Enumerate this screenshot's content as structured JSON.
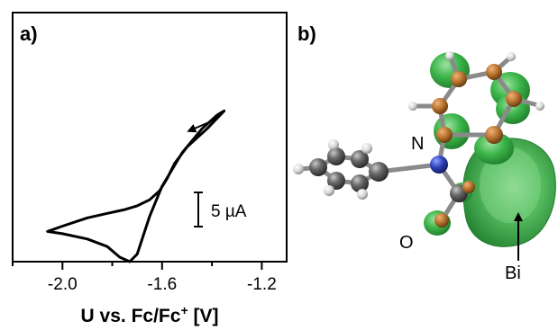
{
  "panel_a": {
    "label": "a)",
    "scale_bar_label": "5 µA",
    "scale_bar_value_uA": 5,
    "arrow_direction": "scan-direction-left"
  },
  "panel_b": {
    "label": "b)",
    "atoms": {
      "nitrogen": "N",
      "oxygen": "O",
      "bismuth": "Bi"
    },
    "orbital_color": "#3cb54a",
    "carbon_color": "#5c5c5c",
    "nitrogen_color": "#2a3fb8",
    "bridge_atom_color": "#b8732e"
  },
  "chart_data": {
    "type": "line",
    "title": "",
    "xlabel": "U vs. Fc/Fc",
    "xlabel_superscript": "+",
    "xlabel_unit": " [V]",
    "ylabel": "",
    "xlim": [
      -2.2,
      -1.1
    ],
    "x_reversed": false,
    "x_ticks": [
      -2.2,
      -2.0,
      -1.8,
      -1.6,
      -1.4,
      -1.2
    ],
    "x_tick_labels": [
      "-2.0",
      "-1.6",
      "-1.2"
    ],
    "x_tick_label_values": [
      -2.0,
      -1.6,
      -1.2
    ],
    "ylim": [
      -14,
      19
    ],
    "grid": false,
    "line_color": "#000000",
    "series": [
      {
        "x": [
          -1.35,
          -1.42,
          -1.5,
          -1.55,
          -1.58,
          -1.61,
          -1.65,
          -1.7,
          -1.75,
          -1.82,
          -1.9,
          -2.0,
          -2.06,
          -2.0,
          -1.9,
          -1.82,
          -1.77,
          -1.73,
          -1.7,
          -1.68,
          -1.65,
          -1.6,
          -1.52,
          -1.44,
          -1.38,
          -1.35
        ],
        "y": [
          6.0,
          3.6,
          1.2,
          -1.0,
          -3.0,
          -4.6,
          -5.8,
          -6.6,
          -7.1,
          -7.6,
          -8.2,
          -9.3,
          -10.0,
          -10.3,
          -11.0,
          -12.0,
          -13.4,
          -14.0,
          -13.0,
          -11.0,
          -8.0,
          -4.0,
          0.4,
          3.6,
          5.4,
          6.0
        ]
      }
    ]
  }
}
